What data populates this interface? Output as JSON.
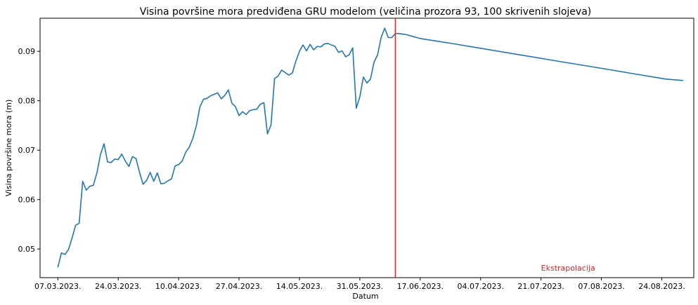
{
  "chart_data": {
    "type": "line",
    "title": "Visina površine mora predviđena GRU modelom (veličina prozora 93, 100 skrivenih slojeva)",
    "xlabel": "Datum",
    "ylabel": "Visina površine mora (m)",
    "ylim": [
      0.0442,
      0.0967
    ],
    "xlim": [
      "2023-03-02",
      "2023-09-02"
    ],
    "x_ticks": [
      {
        "date": "2023-03-07",
        "label": "07.03.2023."
      },
      {
        "date": "2023-03-24",
        "label": "24.03.2023."
      },
      {
        "date": "2023-04-10",
        "label": "10.04.2023."
      },
      {
        "date": "2023-04-27",
        "label": "27.04.2023."
      },
      {
        "date": "2023-05-14",
        "label": "14.05.2023."
      },
      {
        "date": "2023-05-31",
        "label": "31.05.2023."
      },
      {
        "date": "2023-06-17",
        "label": "17.06.2023."
      },
      {
        "date": "2023-07-04",
        "label": "04.07.2023."
      },
      {
        "date": "2023-07-21",
        "label": "21.07.2023."
      },
      {
        "date": "2023-08-07",
        "label": "07.08.2023."
      },
      {
        "date": "2023-08-24",
        "label": "24.08.2023."
      }
    ],
    "y_ticks": [
      {
        "value": 0.05,
        "label": "0.05"
      },
      {
        "value": 0.06,
        "label": "0.06"
      },
      {
        "value": 0.07,
        "label": "0.07"
      },
      {
        "value": 0.08,
        "label": "0.08"
      },
      {
        "value": 0.09,
        "label": "0.09"
      }
    ],
    "grid": false,
    "line_color": "#1f77b4",
    "series": [
      {
        "x": [
          "2023-03-07",
          "2023-03-08",
          "2023-03-09",
          "2023-03-10",
          "2023-03-11",
          "2023-03-12",
          "2023-03-13",
          "2023-03-14",
          "2023-03-15",
          "2023-03-16",
          "2023-03-17",
          "2023-03-18",
          "2023-03-19",
          "2023-03-20",
          "2023-03-21",
          "2023-03-22",
          "2023-03-23",
          "2023-03-24",
          "2023-03-25",
          "2023-03-26",
          "2023-03-27",
          "2023-03-28",
          "2023-03-29",
          "2023-03-30",
          "2023-03-31",
          "2023-04-01",
          "2023-04-02",
          "2023-04-03",
          "2023-04-04",
          "2023-04-05",
          "2023-04-06",
          "2023-04-07",
          "2023-04-08",
          "2023-04-09",
          "2023-04-10",
          "2023-04-11",
          "2023-04-12",
          "2023-04-13",
          "2023-04-14",
          "2023-04-15",
          "2023-04-16",
          "2023-04-17",
          "2023-04-18",
          "2023-04-19",
          "2023-04-20",
          "2023-04-21",
          "2023-04-22",
          "2023-04-23",
          "2023-04-24",
          "2023-04-25",
          "2023-04-26",
          "2023-04-27",
          "2023-04-28",
          "2023-04-29",
          "2023-04-30",
          "2023-05-01",
          "2023-05-02",
          "2023-05-03",
          "2023-05-04",
          "2023-05-05",
          "2023-05-06",
          "2023-05-07",
          "2023-05-08",
          "2023-05-09",
          "2023-05-10",
          "2023-05-11",
          "2023-05-12",
          "2023-05-13",
          "2023-05-14",
          "2023-05-15",
          "2023-05-16",
          "2023-05-17",
          "2023-05-18",
          "2023-05-19",
          "2023-05-20",
          "2023-05-21",
          "2023-05-22",
          "2023-05-23",
          "2023-05-24",
          "2023-05-25",
          "2023-05-26",
          "2023-05-27",
          "2023-05-28",
          "2023-05-29",
          "2023-05-30",
          "2023-05-31",
          "2023-06-01",
          "2023-06-02",
          "2023-06-03",
          "2023-06-04",
          "2023-06-05",
          "2023-06-06",
          "2023-06-07",
          "2023-06-08",
          "2023-06-09",
          "2023-06-10",
          "2023-06-11",
          "2023-06-12",
          "2023-06-13",
          "2023-06-14",
          "2023-06-15",
          "2023-06-16",
          "2023-06-17",
          "2023-06-25",
          "2023-07-05",
          "2023-07-15",
          "2023-07-25",
          "2023-08-05",
          "2023-08-15",
          "2023-08-25",
          "2023-08-30"
        ],
        "y": [
          0.0463,
          0.0492,
          0.0489,
          0.0499,
          0.0522,
          0.0548,
          0.0552,
          0.0637,
          0.0619,
          0.0627,
          0.0629,
          0.0654,
          0.0691,
          0.0713,
          0.0676,
          0.0675,
          0.0682,
          0.0681,
          0.0692,
          0.0678,
          0.0667,
          0.0687,
          0.0683,
          0.0655,
          0.0631,
          0.0639,
          0.0655,
          0.0637,
          0.0654,
          0.0632,
          0.0633,
          0.0638,
          0.0642,
          0.0668,
          0.0671,
          0.0678,
          0.0696,
          0.0706,
          0.0724,
          0.075,
          0.0788,
          0.0803,
          0.0805,
          0.081,
          0.0813,
          0.0816,
          0.0804,
          0.0811,
          0.0822,
          0.0795,
          0.0788,
          0.077,
          0.0778,
          0.0772,
          0.078,
          0.0782,
          0.0783,
          0.0793,
          0.0796,
          0.0733,
          0.0751,
          0.0845,
          0.085,
          0.0862,
          0.0857,
          0.0852,
          0.0856,
          0.088,
          0.09,
          0.0913,
          0.0901,
          0.0914,
          0.0903,
          0.091,
          0.0909,
          0.0915,
          0.0916,
          0.0913,
          0.091,
          0.0898,
          0.0901,
          0.0889,
          0.0893,
          0.0907,
          0.0785,
          0.0808,
          0.0848,
          0.0836,
          0.0844,
          0.0878,
          0.0893,
          0.0928,
          0.0947,
          0.0928,
          0.0928,
          0.0936,
          0.0936,
          0.0935,
          0.0934,
          0.0932,
          0.093,
          0.0928,
          0.0926,
          0.0917,
          0.0905,
          0.0893,
          0.0881,
          0.0868,
          0.0856,
          0.0844,
          0.0841
        ]
      }
    ],
    "vline": {
      "date": "2023-06-10",
      "color": "#d62728"
    },
    "annotations": [
      {
        "text": "Ekstrapolacija",
        "date": "2023-07-21",
        "value": 0.0462,
        "color": "#d62728"
      }
    ]
  }
}
